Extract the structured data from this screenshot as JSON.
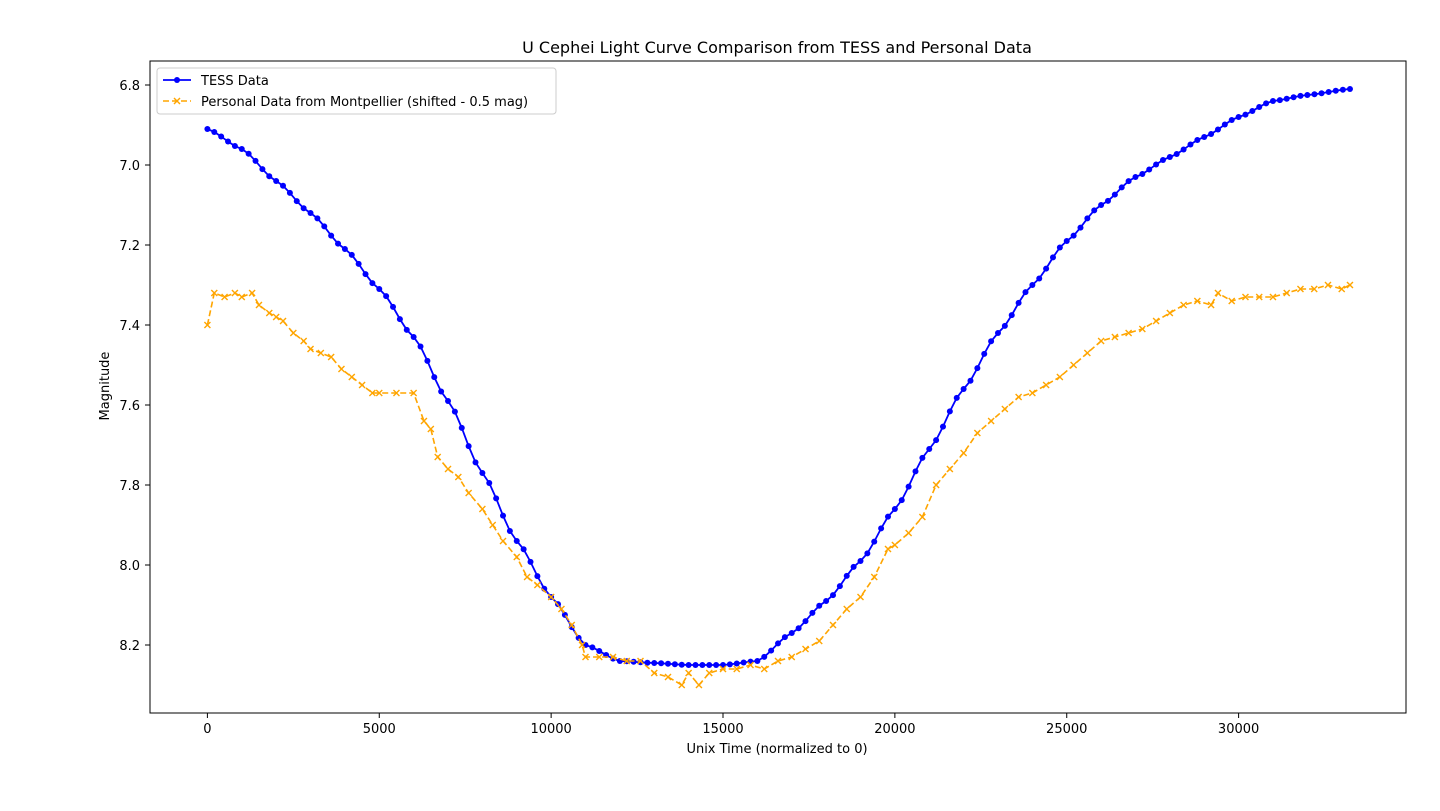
{
  "chart_data": {
    "type": "line",
    "title": "U Cephei Light Curve Comparison from TESS and Personal Data",
    "xlabel": "Unix Time (normalized to 0)",
    "ylabel": "Magnitude",
    "xlim": [
      -1670,
      34870
    ],
    "ylim": [
      8.37,
      6.74
    ],
    "y_inverted": true,
    "x_ticks": [
      0,
      5000,
      10000,
      15000,
      20000,
      25000,
      30000
    ],
    "x_tick_labels": [
      "0",
      "5000",
      "10000",
      "15000",
      "20000",
      "25000",
      "30000"
    ],
    "y_ticks": [
      6.8,
      7.0,
      7.2,
      7.4,
      7.6,
      7.8,
      8.0,
      8.2
    ],
    "y_tick_labels": [
      "6.8",
      "7.0",
      "7.2",
      "7.4",
      "7.6",
      "7.8",
      "8.0",
      "8.2"
    ],
    "grid": false,
    "legend_position": "top-left",
    "series": [
      {
        "name": "TESS Data",
        "color": "#0000ff",
        "line_style": "solid",
        "marker": "circle",
        "x": [
          0,
          1000,
          2000,
          3000,
          4000,
          5000,
          6000,
          7000,
          8000,
          9000,
          10000,
          11000,
          12000,
          13000,
          14000,
          15000,
          16000,
          17000,
          18000,
          19000,
          20000,
          21000,
          22000,
          23000,
          24000,
          25000,
          26000,
          27000,
          28000,
          29000,
          30000,
          31000,
          32000,
          33240
        ],
        "y": [
          6.91,
          6.96,
          7.04,
          7.12,
          7.21,
          7.31,
          7.43,
          7.59,
          7.77,
          7.94,
          8.08,
          8.2,
          8.24,
          8.245,
          8.25,
          8.25,
          8.24,
          8.17,
          8.09,
          7.99,
          7.86,
          7.71,
          7.56,
          7.42,
          7.3,
          7.19,
          7.1,
          7.03,
          6.98,
          6.93,
          6.88,
          6.84,
          6.825,
          6.81
        ]
      },
      {
        "name": "Personal Data from Montpellier (shifted - 0.5 mag)",
        "color": "#ffa500",
        "line_style": "dashed",
        "marker": "x",
        "x": [
          0,
          200,
          500,
          800,
          1000,
          1300,
          1500,
          1800,
          2000,
          2200,
          2500,
          2800,
          3000,
          3300,
          3600,
          3900,
          4200,
          4500,
          4800,
          5000,
          5500,
          6000,
          6300,
          6500,
          6700,
          7000,
          7300,
          7600,
          8000,
          8300,
          8600,
          9000,
          9300,
          9600,
          10000,
          10300,
          10600,
          10900,
          11000,
          11400,
          11800,
          12200,
          12600,
          13000,
          13400,
          13800,
          14000,
          14300,
          14600,
          15000,
          15400,
          15800,
          16200,
          16600,
          17000,
          17400,
          17800,
          18200,
          18600,
          19000,
          19400,
          19800,
          20000,
          20400,
          20800,
          21200,
          21600,
          22000,
          22400,
          22800,
          23200,
          23600,
          24000,
          24400,
          24800,
          25200,
          25600,
          26000,
          26400,
          26800,
          27200,
          27600,
          28000,
          28400,
          28800,
          29200,
          29400,
          29800,
          30200,
          30600,
          31000,
          31400,
          31800,
          32200,
          32600,
          33000,
          33240
        ],
        "y": [
          7.4,
          7.32,
          7.33,
          7.32,
          7.33,
          7.32,
          7.35,
          7.37,
          7.38,
          7.39,
          7.42,
          7.44,
          7.46,
          7.47,
          7.48,
          7.51,
          7.53,
          7.55,
          7.57,
          7.57,
          7.57,
          7.57,
          7.64,
          7.66,
          7.73,
          7.76,
          7.78,
          7.82,
          7.86,
          7.9,
          7.94,
          7.98,
          8.03,
          8.05,
          8.08,
          8.11,
          8.15,
          8.2,
          8.23,
          8.23,
          8.23,
          8.24,
          8.24,
          8.27,
          8.28,
          8.3,
          8.27,
          8.3,
          8.27,
          8.26,
          8.26,
          8.25,
          8.26,
          8.24,
          8.23,
          8.21,
          8.19,
          8.15,
          8.11,
          8.08,
          8.03,
          7.96,
          7.95,
          7.92,
          7.88,
          7.8,
          7.76,
          7.72,
          7.67,
          7.64,
          7.61,
          7.58,
          7.57,
          7.55,
          7.53,
          7.5,
          7.47,
          7.44,
          7.43,
          7.42,
          7.41,
          7.39,
          7.37,
          7.35,
          7.34,
          7.35,
          7.32,
          7.34,
          7.33,
          7.33,
          7.33,
          7.32,
          7.31,
          7.31,
          7.3,
          7.31,
          7.3
        ]
      }
    ]
  }
}
